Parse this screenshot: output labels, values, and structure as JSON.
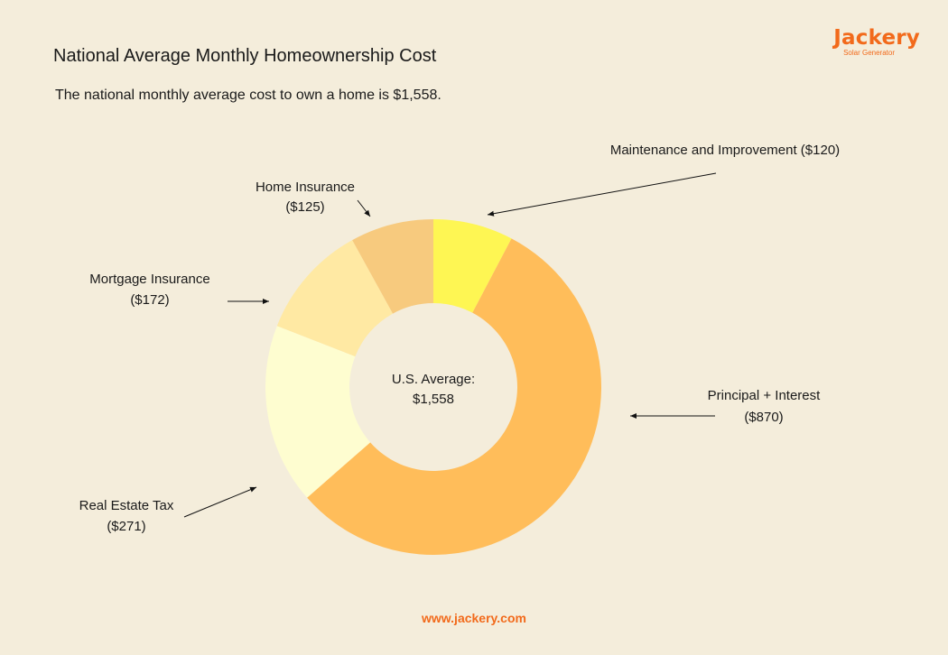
{
  "header": {
    "title": "National Average Monthly Homeownership Cost",
    "subtitle": "The national monthly average cost to own a home is $1,558."
  },
  "brand": {
    "name": "Jackery",
    "tagline": "Solar Generator",
    "color": "#f26a1b"
  },
  "footer": {
    "url": "www.jackery.com"
  },
  "chart_data": {
    "type": "pie",
    "donut": true,
    "center_label": {
      "line1": "U.S. Average:",
      "line2": "$1,558"
    },
    "total": 1558,
    "slices": [
      {
        "name": "Maintenance and Improvement",
        "value": 120,
        "label_lines": [
          "Maintenance and Improvement ($120)"
        ],
        "color": "#fef653"
      },
      {
        "name": "Principal + Interest",
        "value": 870,
        "label_lines": [
          "Principal + Interest",
          "($870)"
        ],
        "color": "#ffbd5a"
      },
      {
        "name": "Real Estate Tax",
        "value": 271,
        "label_lines": [
          "Real Estate Tax",
          "($271)"
        ],
        "color": "#fefdd0"
      },
      {
        "name": "Mortgage Insurance",
        "value": 172,
        "label_lines": [
          "Mortgage Insurance",
          "($172)"
        ],
        "color": "#ffe9a3"
      },
      {
        "name": "Home Insurance",
        "value": 125,
        "label_lines": [
          "Home Insurance",
          "($125)"
        ],
        "color": "#f7ca7e"
      }
    ]
  }
}
